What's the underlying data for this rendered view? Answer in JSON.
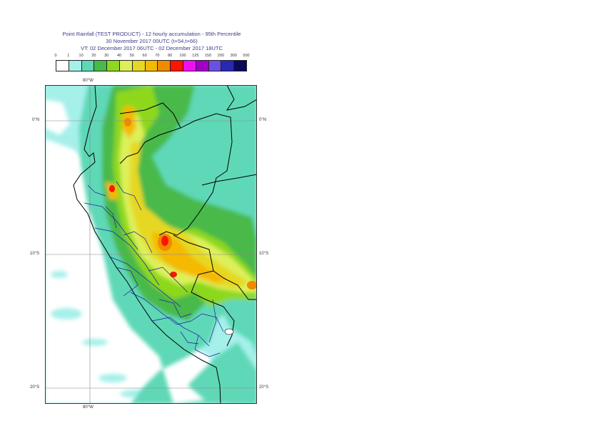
{
  "title": {
    "line1": "Point Rainfall (TEST PRODUCT) - 12 hourly accumulation - 95th Percentile",
    "line2": "30 November 2017 00UTC (t+54,t+66)",
    "line3": "VT: 02 December 2017 06UTC - 02 December 2017 18UTC"
  },
  "colorbar": {
    "labels": [
      "0",
      "1",
      "10",
      "20",
      "30",
      "40",
      "50",
      "60",
      "70",
      "80",
      "100",
      "125",
      "150",
      "200",
      "300",
      "500"
    ],
    "colors": [
      "#ffffff",
      "#a6f0ea",
      "#5fd8b7",
      "#49b94a",
      "#8ed81e",
      "#ddf05a",
      "#e6d822",
      "#f4b900",
      "#f08a00",
      "#ff1400",
      "#ee10f0",
      "#a000c8",
      "#6a50e6",
      "#2828b4",
      "#0a0a5a"
    ]
  },
  "map": {
    "lon_labels": {
      "top": "80°W",
      "bottom": "80°W"
    },
    "lat_labels": [
      "0°N",
      "10°S",
      "20°S"
    ],
    "colors": {
      "sea": "#a6f0ea",
      "coast_line": "#000000",
      "admin_line": "#1a1aa0",
      "grid": "#888888"
    }
  }
}
